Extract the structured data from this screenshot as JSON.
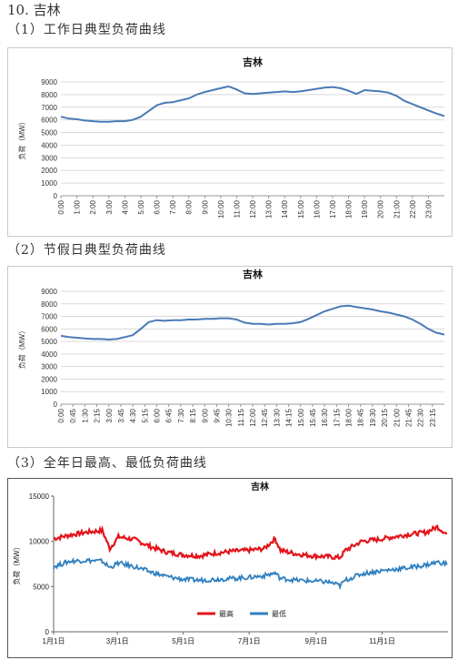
{
  "headings": {
    "main": "10. 吉林",
    "s1": "（1）工作日典型负荷曲线",
    "s2": "（2）节假日典型负荷曲线",
    "s3": "（3）全年日最高、最低负荷曲线"
  },
  "colors": {
    "line": "#4a7ab5",
    "grid": "#d9d9d9",
    "max": "#e3141b",
    "min": "#2e7fbf"
  },
  "chart_data": [
    {
      "type": "line",
      "title": "吉林",
      "ylabel": "负荷（MW）",
      "ylim": [
        0,
        9000
      ],
      "yticks": [
        "0",
        "1000",
        "2000",
        "3000",
        "4000",
        "5000",
        "6000",
        "7000",
        "8000",
        "9000"
      ],
      "xlabels": [
        "0:00",
        "1:00",
        "2:00",
        "3:00",
        "4:00",
        "5:00",
        "6:00",
        "7:00",
        "8:00",
        "9:00",
        "10:00",
        "11:00",
        "12:00",
        "13:00",
        "14:00",
        "15:00",
        "16:00",
        "17:00",
        "18:00",
        "19:00",
        "20:00",
        "21:00",
        "22:00",
        "23:00"
      ],
      "x": [
        0,
        0.5,
        1,
        1.5,
        2,
        2.5,
        3,
        3.5,
        4,
        4.5,
        5,
        5.5,
        6,
        6.5,
        7,
        7.5,
        8,
        8.5,
        9,
        9.5,
        10,
        10.5,
        11,
        11.5,
        12,
        12.5,
        13,
        13.5,
        14,
        14.5,
        15,
        15.5,
        16,
        16.5,
        17,
        17.5,
        18,
        18.5,
        19,
        19.5,
        20,
        20.5,
        21,
        21.5,
        22,
        22.5,
        23,
        23.5,
        24
      ],
      "series": [
        {
          "values": [
            6250,
            6100,
            6050,
            5950,
            5900,
            5850,
            5850,
            5900,
            5900,
            6000,
            6250,
            6700,
            7150,
            7350,
            7400,
            7550,
            7700,
            8000,
            8200,
            8350,
            8500,
            8650,
            8400,
            8100,
            8050,
            8100,
            8150,
            8200,
            8250,
            8200,
            8250,
            8350,
            8450,
            8550,
            8600,
            8500,
            8300,
            8050,
            8350,
            8300,
            8250,
            8150,
            7900,
            7500,
            7250,
            7000,
            6750,
            6500,
            6300
          ]
        }
      ]
    },
    {
      "type": "line",
      "title": "吉林",
      "ylabel": "负荷（MW）",
      "ylim": [
        0,
        9000
      ],
      "yticks": [
        "0",
        "1000",
        "2000",
        "3000",
        "4000",
        "5000",
        "6000",
        "7000",
        "8000",
        "9000"
      ],
      "xlabels": [
        "0:00",
        "0:45",
        "1:30",
        "2:15",
        "3:00",
        "3:45",
        "4:30",
        "5:15",
        "6:00",
        "6:45",
        "7:30",
        "8:15",
        "9:00",
        "9:45",
        "10:30",
        "11:15",
        "12:00",
        "12:45",
        "13:30",
        "14:15",
        "15:00",
        "15:45",
        "16:30",
        "17:15",
        "18:00",
        "18:45",
        "19:30",
        "20:15",
        "21:00",
        "21:45",
        "22:30",
        "23:15"
      ],
      "x": [
        0,
        0.5,
        1,
        1.5,
        2,
        2.5,
        3,
        3.5,
        4,
        4.5,
        5,
        5.5,
        6,
        6.5,
        7,
        7.5,
        8,
        8.5,
        9,
        9.5,
        10,
        10.5,
        11,
        11.5,
        12,
        12.5,
        13,
        13.5,
        14,
        14.5,
        15,
        15.5,
        16,
        16.5,
        17,
        17.5,
        18,
        18.5,
        19,
        19.5,
        20,
        20.5,
        21,
        21.5,
        22,
        22.5,
        23,
        23.5,
        24
      ],
      "series": [
        {
          "values": [
            5450,
            5350,
            5300,
            5250,
            5200,
            5200,
            5150,
            5200,
            5350,
            5500,
            6000,
            6550,
            6700,
            6650,
            6700,
            6700,
            6750,
            6750,
            6800,
            6800,
            6850,
            6850,
            6750,
            6500,
            6400,
            6400,
            6350,
            6400,
            6400,
            6450,
            6550,
            6800,
            7100,
            7400,
            7600,
            7800,
            7850,
            7750,
            7650,
            7550,
            7400,
            7300,
            7150,
            7000,
            6750,
            6400,
            6000,
            5700,
            5550
          ]
        }
      ]
    },
    {
      "type": "line",
      "title": "吉林",
      "ylabel": "负荷（MW）",
      "ylim": [
        0,
        15000
      ],
      "yticks": [
        "0",
        "5000",
        "10000",
        "15000"
      ],
      "xlabels": [
        "1月1日",
        "3月1日",
        "5月1日",
        "7月1日",
        "9月1日",
        "11月1日"
      ],
      "xtick_days": [
        0,
        59,
        120,
        181,
        243,
        304
      ],
      "x": [
        0,
        15,
        30,
        45,
        52,
        60,
        75,
        90,
        105,
        120,
        135,
        150,
        165,
        180,
        195,
        205,
        210,
        225,
        240,
        255,
        265,
        270,
        285,
        300,
        315,
        330,
        345,
        355,
        364
      ],
      "series": [
        {
          "name": "最高",
          "values": [
            10300,
            10700,
            11000,
            11200,
            9200,
            10500,
            10200,
            9400,
            8800,
            8500,
            8400,
            8700,
            8900,
            9000,
            9200,
            10300,
            9000,
            8600,
            8400,
            8300,
            8200,
            9000,
            10000,
            10200,
            10500,
            10800,
            11000,
            11600,
            10800
          ]
        },
        {
          "name": "最低",
          "values": [
            7200,
            7800,
            7900,
            7800,
            7100,
            7600,
            7200,
            6600,
            6100,
            5800,
            5700,
            5800,
            5900,
            6000,
            6200,
            6500,
            5900,
            5700,
            5600,
            5500,
            5100,
            5700,
            6400,
            6700,
            6900,
            7100,
            7400,
            7700,
            7500
          ]
        }
      ],
      "legend": "bottom-center"
    }
  ]
}
